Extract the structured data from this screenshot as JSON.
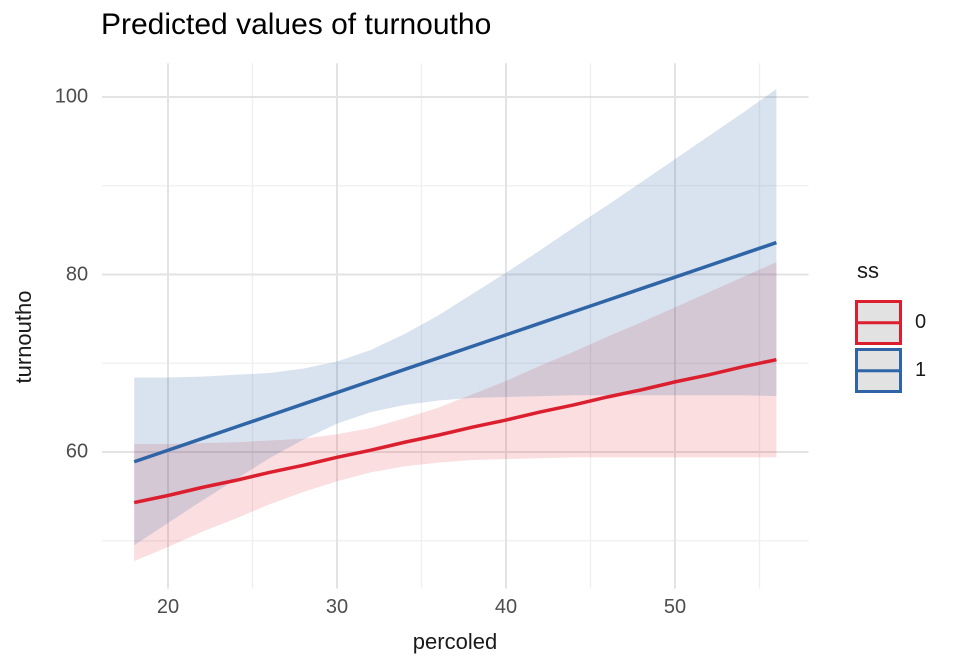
{
  "title": "Predicted values of turnoutho",
  "x_axis": {
    "label": "percoled",
    "ticks": [
      20,
      30,
      40,
      50
    ],
    "minor_ticks": [
      25,
      35,
      45,
      55
    ],
    "range": [
      16.1,
      57.9
    ]
  },
  "y_axis": {
    "label": "turnoutho",
    "ticks": [
      60,
      80,
      100
    ],
    "minor_ticks": [
      50,
      70,
      90
    ],
    "range": [
      44.6,
      103.8
    ]
  },
  "legend": {
    "title": "ss",
    "entries": [
      {
        "label": "0",
        "color": "#dc1f2e"
      },
      {
        "label": "1",
        "color": "#2f65a6"
      }
    ]
  },
  "colors": {
    "red_line": "#dc1f2e",
    "blue_line": "#2f65a6",
    "red_fill": "rgba(220,31,46,0.15)",
    "blue_fill": "rgba(47,101,166,0.18)",
    "grid_major": "#e3e3e3",
    "grid_minor": "#efefef",
    "tick_text": "#4d4d4d",
    "legend_key_fill": "#e2e2e2"
  },
  "chart_data": {
    "type": "line",
    "title": "Predicted values of turnoutho",
    "xlabel": "percoled",
    "ylabel": "turnoutho",
    "xlim": [
      16.1,
      57.9
    ],
    "ylim": [
      44.6,
      103.8
    ],
    "grid": true,
    "legend_position": "right",
    "legend_title": "ss",
    "x": [
      18,
      20,
      22,
      24,
      26,
      28,
      30,
      32,
      34,
      36,
      38,
      40,
      42,
      44,
      46,
      48,
      50,
      52,
      54,
      56
    ],
    "series": [
      {
        "name": "0",
        "color": "#dc1f2e",
        "values": [
          54.3,
          55.1,
          56.0,
          56.8,
          57.7,
          58.5,
          59.4,
          60.2,
          61.1,
          61.9,
          62.8,
          63.6,
          64.5,
          65.3,
          66.2,
          67.0,
          67.9,
          68.7,
          69.6,
          70.4
        ],
        "ci_low": [
          47.7,
          49.3,
          51.0,
          52.5,
          54.1,
          55.5,
          56.7,
          57.7,
          58.4,
          58.8,
          59.1,
          59.2,
          59.3,
          59.4,
          59.4,
          59.4,
          59.4,
          59.4,
          59.4,
          59.4
        ],
        "ci_high": [
          60.9,
          60.9,
          61.0,
          61.1,
          61.3,
          61.5,
          62.0,
          62.7,
          63.8,
          65.0,
          66.5,
          68.0,
          69.7,
          71.3,
          73.0,
          74.6,
          76.3,
          78.0,
          79.7,
          81.4
        ]
      },
      {
        "name": "1",
        "color": "#2f65a6",
        "values": [
          58.9,
          60.2,
          61.5,
          62.8,
          64.1,
          65.4,
          66.7,
          68.0,
          69.3,
          70.6,
          71.9,
          73.2,
          74.5,
          75.8,
          77.1,
          78.4,
          79.7,
          81.0,
          82.3,
          83.6
        ],
        "ci_low": [
          49.5,
          52.0,
          54.5,
          56.9,
          59.3,
          61.4,
          63.2,
          64.5,
          65.3,
          65.8,
          66.1,
          66.2,
          66.3,
          66.4,
          66.4,
          66.4,
          66.4,
          66.4,
          66.4,
          66.3
        ],
        "ci_high": [
          68.4,
          68.4,
          68.5,
          68.7,
          68.9,
          69.4,
          70.2,
          71.5,
          73.3,
          75.4,
          77.8,
          80.2,
          82.7,
          85.3,
          87.8,
          90.4,
          93.0,
          95.6,
          98.2,
          100.9
        ]
      }
    ]
  }
}
